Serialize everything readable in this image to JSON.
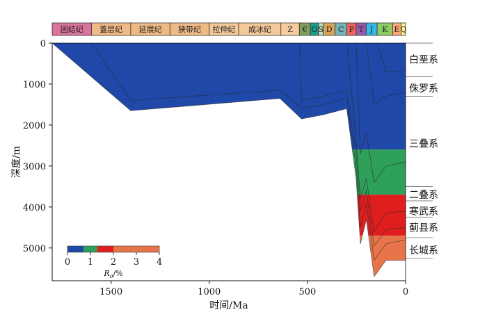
{
  "chart_data": {
    "type": "area",
    "xlabel": "时间/Ma",
    "ylabel": "深度/m",
    "xlim": [
      1800,
      0
    ],
    "ylim": [
      5800,
      0
    ],
    "x_reversed": true,
    "y_reversed": true,
    "xticks": [
      1500,
      1000,
      500,
      0
    ],
    "yticks": [
      0,
      1000,
      2000,
      3000,
      4000,
      5000
    ],
    "grid": false,
    "periods": [
      {
        "label": "固结纪",
        "start": 1800,
        "end": 1600,
        "color": "#d9749c"
      },
      {
        "label": "蓋层纪",
        "start": 1600,
        "end": 1400,
        "color": "#efba86"
      },
      {
        "label": "延展纪",
        "start": 1400,
        "end": 1200,
        "color": "#efba86"
      },
      {
        "label": "狭带纪",
        "start": 1200,
        "end": 1000,
        "color": "#efba86"
      },
      {
        "label": "拉伸纪",
        "start": 1000,
        "end": 850,
        "color": "#f5c89a"
      },
      {
        "label": "成冰纪",
        "start": 850,
        "end": 635,
        "color": "#f5c89a"
      },
      {
        "label": "Z",
        "start": 635,
        "end": 541,
        "color": "#f7cd9d"
      },
      {
        "label": "€",
        "start": 541,
        "end": 485,
        "color": "#7fa05d"
      },
      {
        "label": "O",
        "start": 485,
        "end": 444,
        "color": "#1da08a"
      },
      {
        "label": "S",
        "start": 444,
        "end": 419,
        "color": "#b3dfc7"
      },
      {
        "label": "D",
        "start": 419,
        "end": 359,
        "color": "#d9a45a"
      },
      {
        "label": "C",
        "start": 359,
        "end": 299,
        "color": "#75b5b6"
      },
      {
        "label": "P",
        "start": 299,
        "end": 252,
        "color": "#f0655a"
      },
      {
        "label": "T",
        "start": 252,
        "end": 201,
        "color": "#9a5aa8"
      },
      {
        "label": "J",
        "start": 201,
        "end": 145,
        "color": "#36b9e9"
      },
      {
        "label": "K",
        "start": 145,
        "end": 66,
        "color": "#8dcc62"
      },
      {
        "label": "E",
        "start": 66,
        "end": 23,
        "color": "#fca77b"
      },
      {
        "label": "Q",
        "start": 23,
        "end": 0,
        "color": "#fff28c"
      }
    ],
    "burial_horizons": [
      {
        "name": "长城系 base",
        "points": [
          [
            1800,
            0
          ],
          [
            1400,
            1650
          ],
          [
            640,
            1350
          ],
          [
            530,
            1850
          ],
          [
            420,
            1750
          ],
          [
            300,
            1600
          ],
          [
            252,
            3300
          ],
          [
            230,
            4900
          ],
          [
            200,
            4300
          ],
          [
            160,
            5700
          ],
          [
            100,
            5300
          ],
          [
            0,
            5300
          ]
        ]
      },
      {
        "name": "蓟县系 base",
        "points": [
          [
            1600,
            0
          ],
          [
            1400,
            1400
          ],
          [
            640,
            1150
          ],
          [
            530,
            1600
          ],
          [
            420,
            1500
          ],
          [
            300,
            1350
          ],
          [
            252,
            3000
          ],
          [
            230,
            4500
          ],
          [
            200,
            3900
          ],
          [
            160,
            5300
          ],
          [
            100,
            4900
          ],
          [
            0,
            4800
          ]
        ]
      },
      {
        "name": "寒武系 base",
        "points": [
          [
            541,
            0
          ],
          [
            530,
            1400
          ],
          [
            420,
            1300
          ],
          [
            300,
            1150
          ],
          [
            252,
            2700
          ],
          [
            230,
            4100
          ],
          [
            200,
            3600
          ],
          [
            160,
            4950
          ],
          [
            100,
            4550
          ],
          [
            0,
            4500
          ]
        ]
      },
      {
        "name": "二叠系 base",
        "points": [
          [
            299,
            0
          ],
          [
            252,
            2400
          ],
          [
            230,
            3800
          ],
          [
            200,
            3300
          ],
          [
            160,
            4600
          ],
          [
            100,
            4150
          ],
          [
            0,
            4100
          ]
        ]
      },
      {
        "name": "三叠系 base",
        "points": [
          [
            252,
            0
          ],
          [
            230,
            2700
          ],
          [
            200,
            2200
          ],
          [
            160,
            3400
          ],
          [
            100,
            3000
          ],
          [
            0,
            2900
          ]
        ]
      },
      {
        "name": "侏罗系 base",
        "points": [
          [
            201,
            0
          ],
          [
            160,
            1500
          ],
          [
            100,
            1300
          ],
          [
            0,
            1200
          ]
        ]
      },
      {
        "name": "白垩系 base",
        "points": [
          [
            145,
            0
          ],
          [
            100,
            700
          ],
          [
            0,
            700
          ]
        ]
      }
    ],
    "formations": [
      {
        "label": "白垩系",
        "depth": 400
      },
      {
        "label": "侏罗系",
        "depth": 1100
      },
      {
        "label": "三叠系",
        "depth": 2450
      },
      {
        "label": "二叠系",
        "depth": 3700
      },
      {
        "label": "寒武系",
        "depth": 4100
      },
      {
        "label": "蓟县系",
        "depth": 4500
      },
      {
        "label": "长城系",
        "depth": 5050
      }
    ],
    "maturity_legend": {
      "label_main": "R",
      "label_sub": "o",
      "label_unit": "/%",
      "ticks": [
        0,
        1,
        2,
        3,
        4
      ],
      "classes": [
        {
          "from": 0,
          "to": 0.7,
          "color": "#1f48a8"
        },
        {
          "from": 0.7,
          "to": 1.3,
          "color": "#2ea05a"
        },
        {
          "from": 1.3,
          "to": 2.0,
          "color": "#e01e1e"
        },
        {
          "from": 2.0,
          "to": 4.0,
          "color": "#e8744a"
        }
      ],
      "placement": "bottom-left"
    },
    "maturity_zones": [
      {
        "top": 0,
        "bottom": 2600,
        "color": "#1f48a8"
      },
      {
        "top": 2600,
        "bottom": 3700,
        "color": "#2ea05a"
      },
      {
        "top": 3700,
        "bottom": 4700,
        "color": "#e01e1e"
      },
      {
        "top": 4700,
        "bottom": 6000,
        "color": "#e8744a"
      }
    ]
  }
}
